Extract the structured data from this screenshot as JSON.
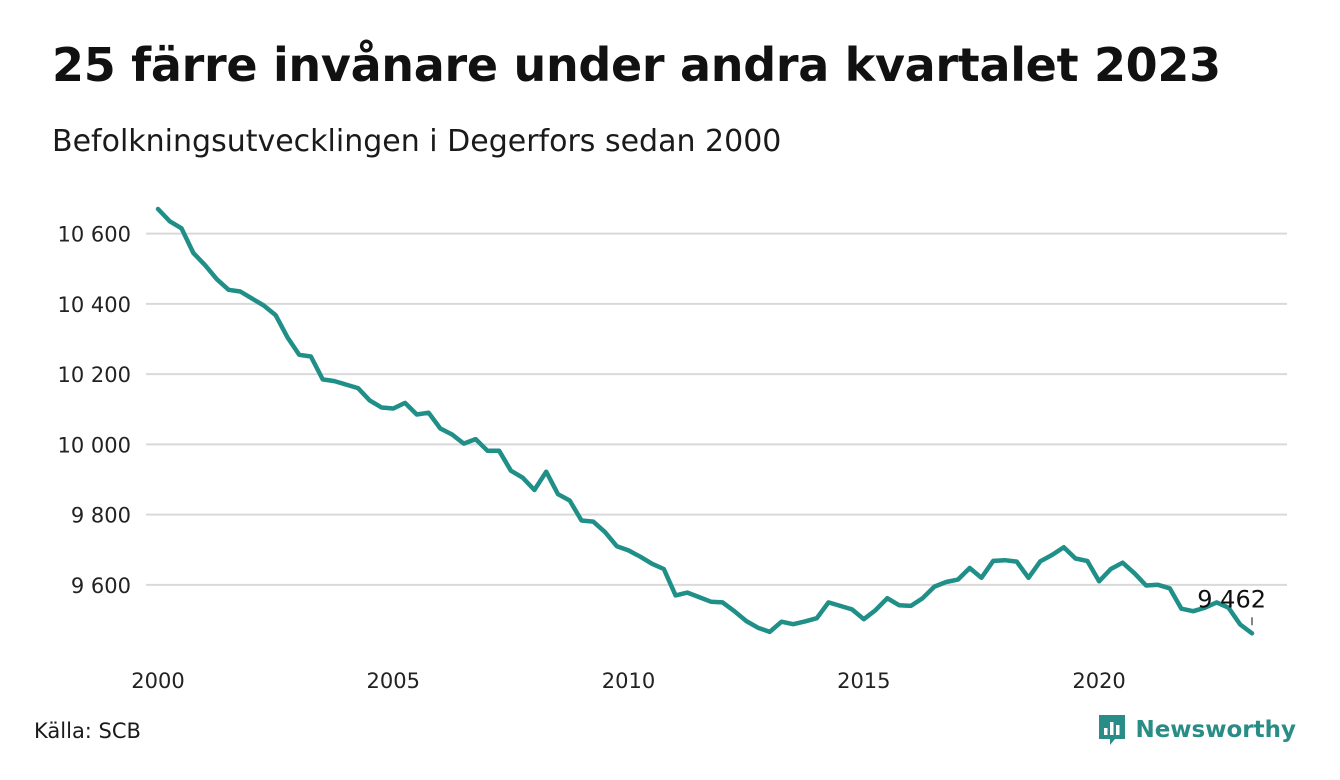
{
  "title": "25 färre invånare under andra kvartalet 2023",
  "subtitle": "Befolkningsutvecklingen i Degerfors sedan 2000",
  "source": "Källa: SCB",
  "logo": {
    "text": "Newsworthy",
    "icon": "bar-chart-speech-bubble-icon"
  },
  "colors": {
    "line": "#1f8f87",
    "grid": "#d9d9d9",
    "logo": "#2a8c86"
  },
  "chart_data": {
    "type": "line",
    "title": "25 färre invånare under andra kvartalet 2023",
    "subtitle": "Befolkningsutvecklingen i Degerfors sedan 2000",
    "xlabel": "",
    "ylabel": "",
    "grid": "horizontal",
    "legend": "none",
    "xlim": [
      2000.0,
      2023.25
    ],
    "ylim": [
      9460,
      10670
    ],
    "x_ticks": [
      2000,
      2005,
      2010,
      2015,
      2020
    ],
    "x_tick_labels": [
      "2000",
      "2005",
      "2010",
      "2015",
      "2020"
    ],
    "y_ticks": [
      9600,
      9800,
      10000,
      10200,
      10400,
      10600
    ],
    "y_tick_labels": [
      "9 600",
      "9 800",
      "10 000",
      "10 200",
      "10 400",
      "10 600"
    ],
    "end_label": "9 462",
    "x": [
      2000.0,
      2000.25,
      2000.5,
      2000.75,
      2001.0,
      2001.25,
      2001.5,
      2001.75,
      2002.0,
      2002.25,
      2002.5,
      2002.75,
      2003.0,
      2003.25,
      2003.5,
      2003.75,
      2004.0,
      2004.25,
      2004.5,
      2004.75,
      2005.0,
      2005.25,
      2005.5,
      2005.75,
      2006.0,
      2006.25,
      2006.5,
      2006.75,
      2007.0,
      2007.25,
      2007.5,
      2007.75,
      2008.0,
      2008.25,
      2008.5,
      2008.75,
      2009.0,
      2009.25,
      2009.5,
      2009.75,
      2010.0,
      2010.25,
      2010.5,
      2010.75,
      2011.0,
      2011.25,
      2011.5,
      2011.75,
      2012.0,
      2012.25,
      2012.5,
      2012.75,
      2013.0,
      2013.25,
      2013.5,
      2013.75,
      2014.0,
      2014.25,
      2014.5,
      2014.75,
      2015.0,
      2015.25,
      2015.5,
      2015.75,
      2016.0,
      2016.25,
      2016.5,
      2016.75,
      2017.0,
      2017.25,
      2017.5,
      2017.75,
      2018.0,
      2018.25,
      2018.5,
      2018.75,
      2019.0,
      2019.25,
      2019.5,
      2019.75,
      2020.0,
      2020.25,
      2020.5,
      2020.75,
      2021.0,
      2021.25,
      2021.5,
      2021.75,
      2022.0,
      2022.25,
      2022.5,
      2022.75,
      2023.0,
      2023.25
    ],
    "series": [
      {
        "values": [
          10670,
          10635,
          10615,
          10545,
          10510,
          10470,
          10440,
          10435,
          10415,
          10395,
          10368,
          10305,
          10255,
          10250,
          10185,
          10180,
          10170,
          10160,
          10125,
          10105,
          10102,
          10118,
          10085,
          10090,
          10045,
          10028,
          10002,
          10015,
          9982,
          9982,
          9925,
          9905,
          9870,
          9922,
          9858,
          9840,
          9783,
          9780,
          9750,
          9710,
          9698,
          9680,
          9660,
          9645,
          9570,
          9578,
          9565,
          9552,
          9550,
          9525,
          9497,
          9478,
          9466,
          9495,
          9488,
          9496,
          9505,
          9550,
          9540,
          9530,
          9502,
          9528,
          9562,
          9542,
          9540,
          9562,
          9595,
          9608,
          9615,
          9648,
          9620,
          9668,
          9670,
          9666,
          9620,
          9667,
          9685,
          9707,
          9675,
          9668,
          9610,
          9645,
          9663,
          9633,
          9598,
          9600,
          9590,
          9532,
          9525,
          9535,
          9550,
          9535,
          9487,
          9462
        ]
      }
    ]
  }
}
